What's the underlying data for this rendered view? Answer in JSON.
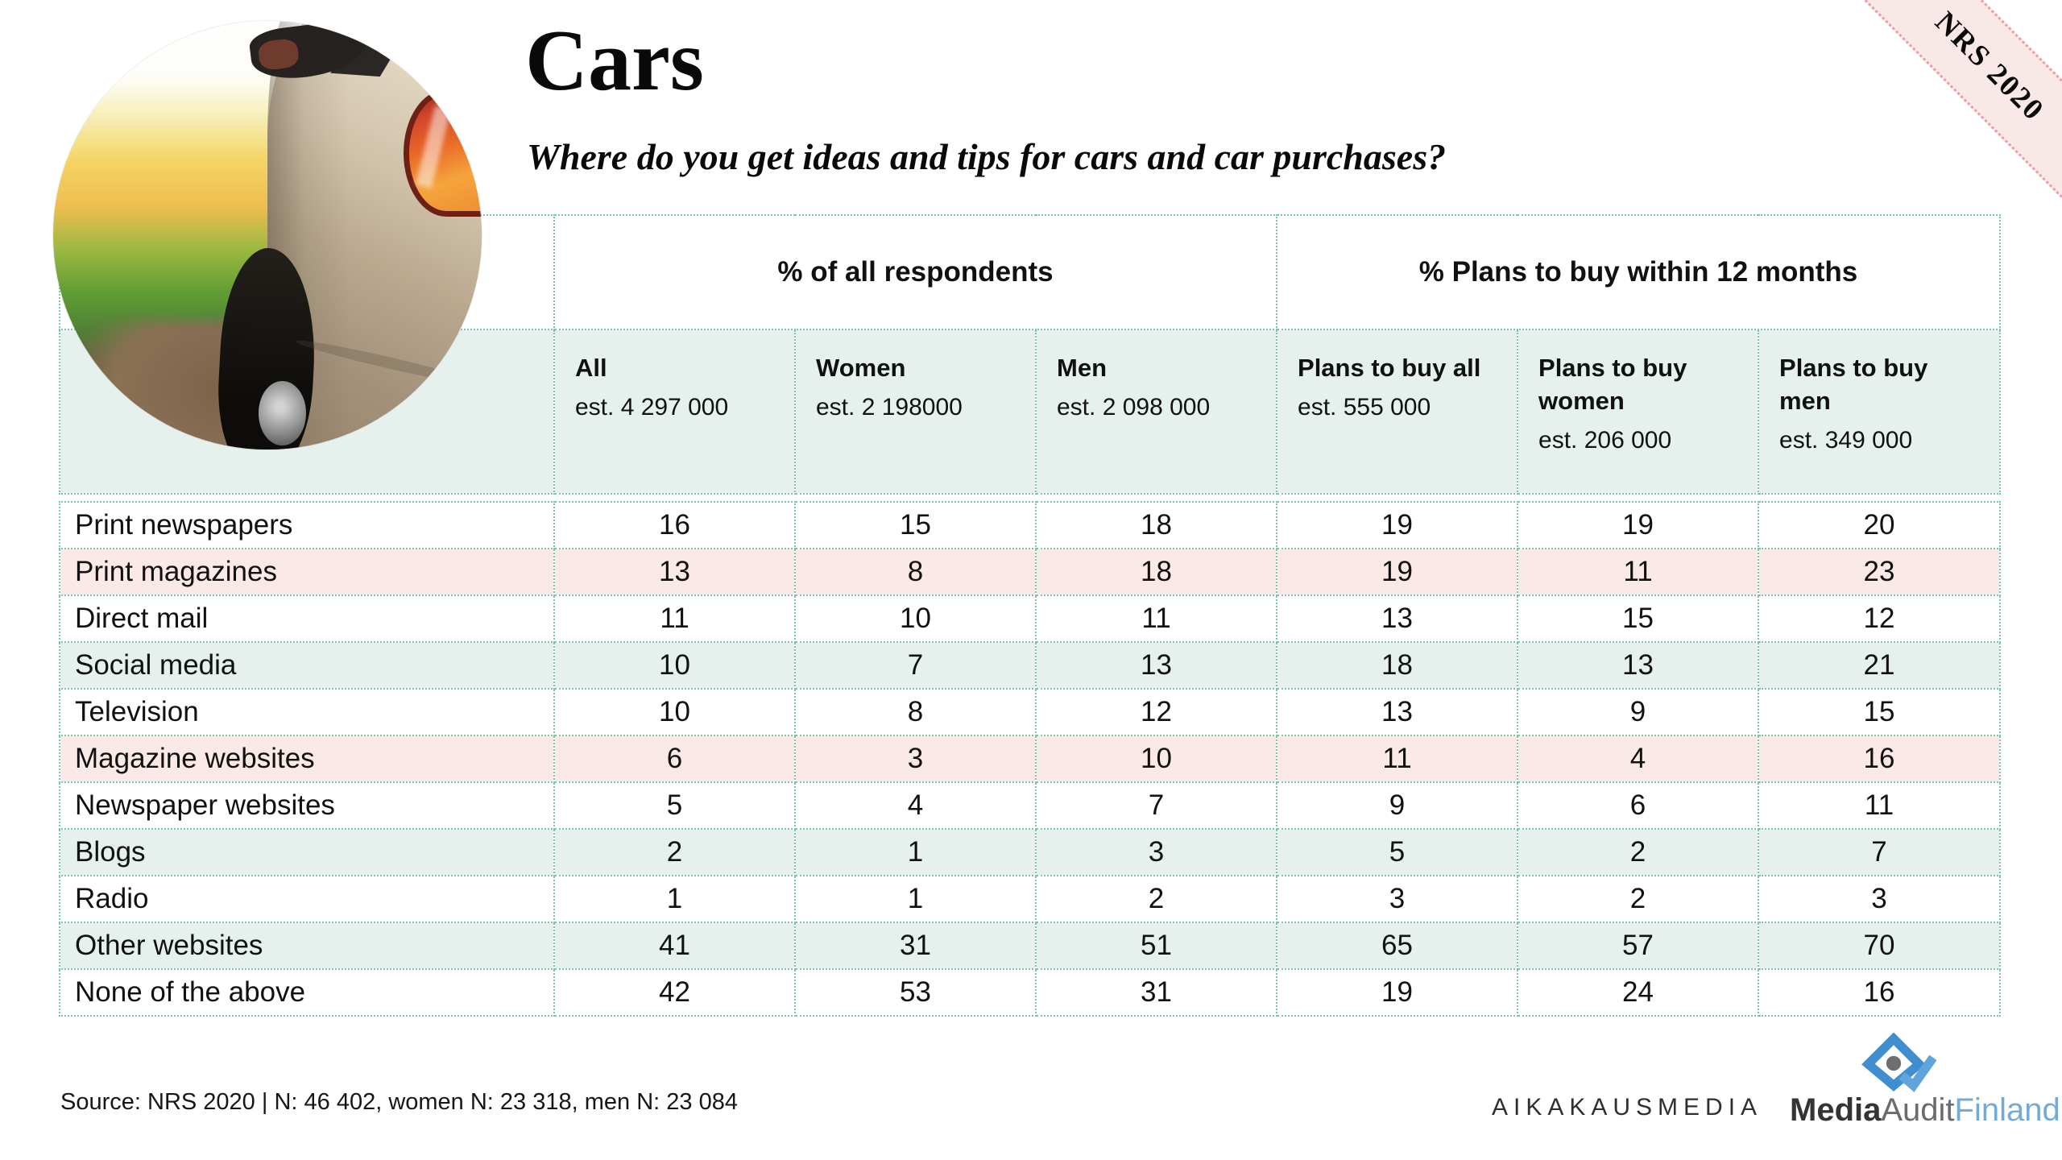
{
  "slide": {
    "title": "Cars",
    "subtitle": "Where do you get ideas and tips for cars and car purchases?",
    "ribbon_label": "NRS 2020",
    "source_note": "Source: NRS 2020 | N: 46 402, women N: 23 318, men N: 23 084",
    "logos": {
      "aikakausmedia": "AIKAKAUSMEDIA",
      "media_audit_finland": {
        "media": "Media",
        "audit": "Audit",
        "finland": "Finland"
      }
    },
    "hero_image_name": "rear-of-beige-car-beside-golden-field-photo"
  },
  "chart_data": {
    "type": "table",
    "title": "Cars",
    "question": "Where do you get ideas and tips for cars and car purchases?",
    "group_headers": [
      {
        "label": "% of all respondents",
        "span": 3
      },
      {
        "label": "% Plans to buy within 12 months",
        "span": 3
      }
    ],
    "columns": [
      {
        "label": "All",
        "est": "est. 4 297 000"
      },
      {
        "label": "Women",
        "est": "est. 2 198000"
      },
      {
        "label": "Men",
        "est": "est. 2 098 000"
      },
      {
        "label": "Plans to buy all",
        "est": "est. 555 000"
      },
      {
        "label": "Plans to buy women",
        "est": "est. 206 000"
      },
      {
        "label": "Plans to buy men",
        "est": "est. 349 000"
      }
    ],
    "rows": [
      {
        "label": "Print newspapers",
        "values": [
          16,
          15,
          18,
          19,
          19,
          20
        ],
        "stripe": "white"
      },
      {
        "label": "Print magazines",
        "values": [
          13,
          8,
          18,
          19,
          11,
          23
        ],
        "stripe": "pink"
      },
      {
        "label": "Direct mail",
        "values": [
          11,
          10,
          11,
          13,
          15,
          12
        ],
        "stripe": "white"
      },
      {
        "label": "Social media",
        "values": [
          10,
          7,
          13,
          18,
          13,
          21
        ],
        "stripe": "mint"
      },
      {
        "label": "Television",
        "values": [
          10,
          8,
          12,
          13,
          9,
          15
        ],
        "stripe": "white"
      },
      {
        "label": "Magazine websites",
        "values": [
          6,
          3,
          10,
          11,
          4,
          16
        ],
        "stripe": "pink"
      },
      {
        "label": "Newspaper websites",
        "values": [
          5,
          4,
          7,
          9,
          6,
          11
        ],
        "stripe": "white"
      },
      {
        "label": "Blogs",
        "values": [
          2,
          1,
          3,
          5,
          2,
          7
        ],
        "stripe": "mint"
      },
      {
        "label": "Radio",
        "values": [
          1,
          1,
          2,
          3,
          2,
          3
        ],
        "stripe": "white"
      },
      {
        "label": "Other websites",
        "values": [
          41,
          31,
          51,
          65,
          57,
          70
        ],
        "stripe": "mint"
      },
      {
        "label": "None of the above",
        "values": [
          42,
          53,
          31,
          19,
          24,
          16
        ],
        "stripe": "white"
      }
    ]
  },
  "colors": {
    "mint_row": "#e6f1ed",
    "pink_row": "#fbe9e7",
    "grid_dot_teal": "#7bc3ac",
    "ribbon_fill": "#f9e8e8",
    "ribbon_dot_pink": "#ec9c9c",
    "finland_blue": "#74aad8",
    "maf_icon_blue": "#3f8fd0",
    "maf_icon_gray": "#6f6f6f"
  }
}
